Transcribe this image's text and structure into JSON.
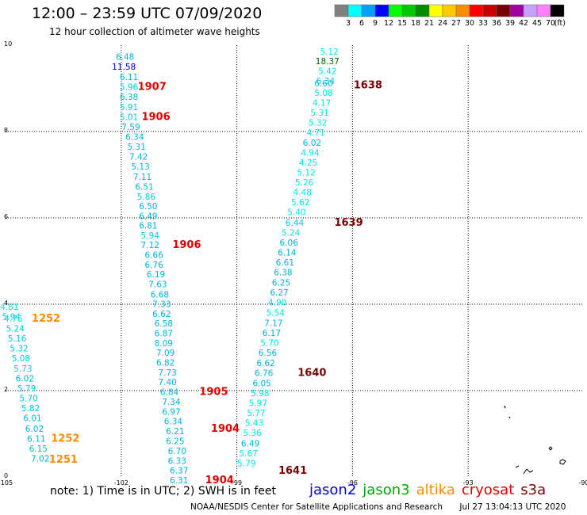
{
  "header": {
    "title": "12:00 – 23:59 UTC 07/09/2020",
    "subtitle": "12 hour collection of altimeter wave heights"
  },
  "colorbar": {
    "unit": "(ft)",
    "bins": [
      {
        "label": "3",
        "color": "#808080"
      },
      {
        "label": "6",
        "color": "#00ffff"
      },
      {
        "label": "9",
        "color": "#00a0ff"
      },
      {
        "label": "12",
        "color": "#0000ff"
      },
      {
        "label": "15",
        "color": "#00ff00"
      },
      {
        "label": "18",
        "color": "#00c800"
      },
      {
        "label": "21",
        "color": "#008c00"
      },
      {
        "label": "24",
        "color": "#ffff00"
      },
      {
        "label": "27",
        "color": "#ffc800"
      },
      {
        "label": "30",
        "color": "#ff8c00"
      },
      {
        "label": "33",
        "color": "#ff0000"
      },
      {
        "label": "36",
        "color": "#c80000"
      },
      {
        "label": "39",
        "color": "#780000"
      },
      {
        "label": "42",
        "color": "#a000a0"
      },
      {
        "label": "45",
        "color": "#c8a0ff"
      },
      {
        "label": "70",
        "color": "#ff80ff"
      },
      {
        "label": "",
        "color": "#000000"
      }
    ]
  },
  "axes": {
    "x_ticks": [
      {
        "value": -105,
        "label": "-105"
      },
      {
        "value": -102,
        "label": "-102"
      },
      {
        "value": -99,
        "label": "-99"
      },
      {
        "value": -96,
        "label": "-96"
      },
      {
        "value": -93,
        "label": "-93"
      },
      {
        "value": -90,
        "label": "-90"
      }
    ],
    "y_ticks": [
      {
        "value": 0,
        "label": "0"
      },
      {
        "value": 2,
        "label": "2"
      },
      {
        "value": 4,
        "label": "4"
      },
      {
        "value": 6,
        "label": "6"
      },
      {
        "value": 8,
        "label": "8"
      },
      {
        "value": 10,
        "label": "10"
      }
    ],
    "xlim": [
      -105,
      -90
    ],
    "ylim": [
      0,
      10
    ]
  },
  "chart_data": {
    "type": "scatter",
    "xlim": [
      -105,
      -90
    ],
    "ylim": [
      0,
      10
    ],
    "grid": true,
    "observations": [
      {
        "lon": -101.9,
        "lat": 9.66,
        "value": "6.48",
        "color": "#00b4dc"
      },
      {
        "lon": -101.93,
        "lat": 9.43,
        "value": "11.58",
        "color": "#0000c8"
      },
      {
        "lon": -101.8,
        "lat": 9.19,
        "value": "6.11",
        "color": "#00b4dc"
      },
      {
        "lon": -101.8,
        "lat": 8.96,
        "value": "5.96",
        "color": "#00c8e6"
      },
      {
        "lon": -101.8,
        "lat": 8.73,
        "value": "6.38",
        "color": "#00b4dc"
      },
      {
        "lon": -101.8,
        "lat": 8.5,
        "value": "5.91",
        "color": "#00c8e6"
      },
      {
        "lon": -101.8,
        "lat": 8.27,
        "value": "5.01",
        "color": "#00c8e6"
      },
      {
        "lon": -101.75,
        "lat": 8.04,
        "value": "7.59",
        "color": "#00b4dc"
      },
      {
        "lon": -101.65,
        "lat": 7.81,
        "value": "6.34",
        "color": "#00b4dc"
      },
      {
        "lon": -101.6,
        "lat": 7.58,
        "value": "5.31",
        "color": "#00b4dc"
      },
      {
        "lon": -101.55,
        "lat": 7.35,
        "value": "7.42",
        "color": "#00b4dc"
      },
      {
        "lon": -101.5,
        "lat": 7.12,
        "value": "5.13",
        "color": "#00b4dc"
      },
      {
        "lon": -101.45,
        "lat": 6.88,
        "value": "7.11",
        "color": "#00b4dc"
      },
      {
        "lon": -101.4,
        "lat": 6.65,
        "value": "6.51",
        "color": "#00b4dc"
      },
      {
        "lon": -101.35,
        "lat": 6.42,
        "value": "5.86",
        "color": "#00c8e6"
      },
      {
        "lon": -101.3,
        "lat": 6.2,
        "value": "6.50",
        "color": "#00b4dc"
      },
      {
        "lon": -101.3,
        "lat": 5.97,
        "value": "6.49",
        "color": "#00b4dc"
      },
      {
        "lon": -101.3,
        "lat": 5.75,
        "value": "6.81",
        "color": "#00b4dc"
      },
      {
        "lon": -101.25,
        "lat": 5.52,
        "value": "5.94",
        "color": "#00c8e6"
      },
      {
        "lon": -101.25,
        "lat": 5.3,
        "value": "7.12",
        "color": "#00b4dc"
      },
      {
        "lon": -101.15,
        "lat": 5.07,
        "value": "6.66",
        "color": "#00b4dc"
      },
      {
        "lon": -101.15,
        "lat": 4.84,
        "value": "6.76",
        "color": "#00b4dc"
      },
      {
        "lon": -101.1,
        "lat": 4.62,
        "value": "6.19",
        "color": "#00b4dc"
      },
      {
        "lon": -101.05,
        "lat": 4.39,
        "value": "7.63",
        "color": "#00b4dc"
      },
      {
        "lon": -101.0,
        "lat": 4.16,
        "value": "6.68",
        "color": "#00b4dc"
      },
      {
        "lon": -100.95,
        "lat": 3.94,
        "value": "7.33",
        "color": "#00b4dc"
      },
      {
        "lon": -100.95,
        "lat": 3.71,
        "value": "6.62",
        "color": "#00b4dc"
      },
      {
        "lon": -100.9,
        "lat": 3.49,
        "value": "6.58",
        "color": "#00b4dc"
      },
      {
        "lon": -100.9,
        "lat": 3.26,
        "value": "6.87",
        "color": "#00b4dc"
      },
      {
        "lon": -100.9,
        "lat": 3.03,
        "value": "8.09",
        "color": "#00b4dc"
      },
      {
        "lon": -100.85,
        "lat": 2.81,
        "value": "7.09",
        "color": "#00b4dc"
      },
      {
        "lon": -100.85,
        "lat": 2.58,
        "value": "6.82",
        "color": "#00b4dc"
      },
      {
        "lon": -100.8,
        "lat": 2.35,
        "value": "7.73",
        "color": "#00b4dc"
      },
      {
        "lon": -100.8,
        "lat": 2.13,
        "value": "7.40",
        "color": "#00b4dc"
      },
      {
        "lon": -100.75,
        "lat": 1.9,
        "value": "6.84",
        "color": "#00b4dc"
      },
      {
        "lon": -100.7,
        "lat": 1.67,
        "value": "7.34",
        "color": "#00b4dc"
      },
      {
        "lon": -100.7,
        "lat": 1.44,
        "value": "6.97",
        "color": "#00b4dc"
      },
      {
        "lon": -100.65,
        "lat": 1.22,
        "value": "6.34",
        "color": "#00b4dc"
      },
      {
        "lon": -100.6,
        "lat": 0.99,
        "value": "6.21",
        "color": "#00b4dc"
      },
      {
        "lon": -100.6,
        "lat": 0.76,
        "value": "6.25",
        "color": "#00b4dc"
      },
      {
        "lon": -100.55,
        "lat": 0.53,
        "value": "6.70",
        "color": "#00b4dc"
      },
      {
        "lon": -100.55,
        "lat": 0.3,
        "value": "6.33",
        "color": "#00b4dc"
      },
      {
        "lon": -100.5,
        "lat": 0.08,
        "value": "6.37",
        "color": "#00b4dc"
      },
      {
        "lon": -100.5,
        "lat": -0.15,
        "value": "6.31",
        "color": "#00b4dc"
      },
      {
        "lon": -96.6,
        "lat": 9.78,
        "value": "5.12",
        "color": "#00e6e6"
      },
      {
        "lon": -96.65,
        "lat": 9.56,
        "value": "18.37",
        "color": "#006400"
      },
      {
        "lon": -96.65,
        "lat": 9.33,
        "value": "5.42",
        "color": "#00e6e6"
      },
      {
        "lon": -96.7,
        "lat": 9.1,
        "value": "6.34",
        "color": "#00c8e6"
      },
      {
        "lon": -96.75,
        "lat": 9.05,
        "value": "6.60",
        "color": "#00c8e6"
      },
      {
        "lon": -96.75,
        "lat": 8.83,
        "value": "5.08",
        "color": "#00e6e6"
      },
      {
        "lon": -96.8,
        "lat": 8.6,
        "value": "4.17",
        "color": "#00e6e6"
      },
      {
        "lon": -96.85,
        "lat": 8.37,
        "value": "5.31",
        "color": "#00e6e6"
      },
      {
        "lon": -96.9,
        "lat": 8.14,
        "value": "5.32",
        "color": "#00e6e6"
      },
      {
        "lon": -96.95,
        "lat": 7.91,
        "value": "4.71",
        "color": "#00e6e6"
      },
      {
        "lon": -97.05,
        "lat": 7.67,
        "value": "6.02",
        "color": "#00b4dc"
      },
      {
        "lon": -97.1,
        "lat": 7.44,
        "value": "4.94",
        "color": "#00e6e6"
      },
      {
        "lon": -97.15,
        "lat": 7.21,
        "value": "4.25",
        "color": "#00e6e6"
      },
      {
        "lon": -97.2,
        "lat": 6.98,
        "value": "5.12",
        "color": "#00e6e6"
      },
      {
        "lon": -97.25,
        "lat": 6.75,
        "value": "5.26",
        "color": "#00e6e6"
      },
      {
        "lon": -97.3,
        "lat": 6.52,
        "value": "4.48",
        "color": "#00e6e6"
      },
      {
        "lon": -97.35,
        "lat": 6.29,
        "value": "5.62",
        "color": "#00e6e6"
      },
      {
        "lon": -97.45,
        "lat": 6.06,
        "value": "5.40",
        "color": "#00e6e6"
      },
      {
        "lon": -97.5,
        "lat": 5.82,
        "value": "6.44",
        "color": "#00c8e6"
      },
      {
        "lon": -97.6,
        "lat": 5.59,
        "value": "5.24",
        "color": "#00e6e6"
      },
      {
        "lon": -97.65,
        "lat": 5.36,
        "value": "6.06",
        "color": "#00b4dc"
      },
      {
        "lon": -97.7,
        "lat": 5.13,
        "value": "6.14",
        "color": "#00b4dc"
      },
      {
        "lon": -97.75,
        "lat": 4.9,
        "value": "6.61",
        "color": "#00b4dc"
      },
      {
        "lon": -97.8,
        "lat": 4.67,
        "value": "6.38",
        "color": "#00b4dc"
      },
      {
        "lon": -97.85,
        "lat": 4.43,
        "value": "6.25",
        "color": "#00b4dc"
      },
      {
        "lon": -97.9,
        "lat": 4.2,
        "value": "6.27",
        "color": "#00b4dc"
      },
      {
        "lon": -97.95,
        "lat": 3.97,
        "value": "4.90",
        "color": "#00e6e6"
      },
      {
        "lon": -98.0,
        "lat": 3.73,
        "value": "5.54",
        "color": "#00e6e6"
      },
      {
        "lon": -98.05,
        "lat": 3.5,
        "value": "7.17",
        "color": "#00b4dc"
      },
      {
        "lon": -98.1,
        "lat": 3.27,
        "value": "6.17",
        "color": "#00b4dc"
      },
      {
        "lon": -98.15,
        "lat": 3.04,
        "value": "5.70",
        "color": "#00e6e6"
      },
      {
        "lon": -98.2,
        "lat": 2.81,
        "value": "6.56",
        "color": "#00b4dc"
      },
      {
        "lon": -98.25,
        "lat": 2.57,
        "value": "6.62",
        "color": "#00b4dc"
      },
      {
        "lon": -98.3,
        "lat": 2.34,
        "value": "6.76",
        "color": "#00b4dc"
      },
      {
        "lon": -98.35,
        "lat": 2.1,
        "value": "6.05",
        "color": "#00b4dc"
      },
      {
        "lon": -98.4,
        "lat": 1.87,
        "value": "5.98",
        "color": "#00e6e6"
      },
      {
        "lon": -98.45,
        "lat": 1.64,
        "value": "5.97",
        "color": "#00e6e6"
      },
      {
        "lon": -98.5,
        "lat": 1.41,
        "value": "5.77",
        "color": "#00e6e6"
      },
      {
        "lon": -98.55,
        "lat": 1.18,
        "value": "5.43",
        "color": "#00e6e6"
      },
      {
        "lon": -98.6,
        "lat": 0.95,
        "value": "5.36",
        "color": "#00e6e6"
      },
      {
        "lon": -98.65,
        "lat": 0.71,
        "value": "6.49",
        "color": "#00b4dc"
      },
      {
        "lon": -98.7,
        "lat": 0.48,
        "value": "5.67",
        "color": "#00e6e6"
      },
      {
        "lon": -98.75,
        "lat": 0.25,
        "value": "5.79",
        "color": "#00e6e6"
      },
      {
        "lon": -104.9,
        "lat": 3.87,
        "value": "4.81",
        "color": "#00e6e6"
      },
      {
        "lon": -104.85,
        "lat": 3.64,
        "value": "5.94",
        "color": "#00c8e6"
      },
      {
        "lon": -104.8,
        "lat": 3.6,
        "value": "4.76",
        "color": "#00e6e6"
      },
      {
        "lon": -104.75,
        "lat": 3.37,
        "value": "5.24",
        "color": "#00c8e6"
      },
      {
        "lon": -104.7,
        "lat": 3.14,
        "value": "5.16",
        "color": "#00c8e6"
      },
      {
        "lon": -104.65,
        "lat": 2.91,
        "value": "5.32",
        "color": "#00c8e6"
      },
      {
        "lon": -104.6,
        "lat": 2.68,
        "value": "5.08",
        "color": "#00c8e6"
      },
      {
        "lon": -104.55,
        "lat": 2.44,
        "value": "5.73",
        "color": "#00c8e6"
      },
      {
        "lon": -104.5,
        "lat": 2.21,
        "value": "6.02",
        "color": "#00b4dc"
      },
      {
        "lon": -104.45,
        "lat": 1.98,
        "value": "5.79",
        "color": "#00c8e6"
      },
      {
        "lon": -104.4,
        "lat": 1.75,
        "value": "5.70",
        "color": "#00c8e6"
      },
      {
        "lon": -104.35,
        "lat": 1.52,
        "value": "5.82",
        "color": "#00c8e6"
      },
      {
        "lon": -104.3,
        "lat": 1.29,
        "value": "6.01",
        "color": "#00b4dc"
      },
      {
        "lon": -104.25,
        "lat": 1.05,
        "value": "6.02",
        "color": "#00b4dc"
      },
      {
        "lon": -104.2,
        "lat": 0.82,
        "value": "6.11",
        "color": "#00b4dc"
      },
      {
        "lon": -104.15,
        "lat": 0.59,
        "value": "6.15",
        "color": "#00b4dc"
      },
      {
        "lon": -104.1,
        "lat": 0.36,
        "value": "7.02",
        "color": "#00b4dc"
      }
    ],
    "pass_times": [
      {
        "lon": -101.2,
        "lat": 8.96,
        "label": "1907",
        "color": "#dd0000"
      },
      {
        "lon": -101.1,
        "lat": 8.27,
        "label": "1906",
        "color": "#dd0000"
      },
      {
        "lon": -100.3,
        "lat": 5.3,
        "label": "1906",
        "color": "#dd0000"
      },
      {
        "lon": -99.6,
        "lat": 1.9,
        "label": "1905",
        "color": "#dd0000"
      },
      {
        "lon": -99.3,
        "lat": 1.05,
        "label": "1904",
        "color": "#dd0000"
      },
      {
        "lon": -99.45,
        "lat": -0.15,
        "label": "1904",
        "color": "#dd0000"
      },
      {
        "lon": -95.6,
        "lat": 9.0,
        "label": "1638",
        "color": "#780000"
      },
      {
        "lon": -96.1,
        "lat": 5.82,
        "label": "1639",
        "color": "#780000"
      },
      {
        "lon": -97.05,
        "lat": 2.34,
        "label": "1640",
        "color": "#780000"
      },
      {
        "lon": -97.55,
        "lat": 0.07,
        "label": "1641",
        "color": "#780000"
      },
      {
        "lon": -103.95,
        "lat": 3.6,
        "label": "1252",
        "color": "#ff8c00"
      },
      {
        "lon": -103.45,
        "lat": 0.82,
        "label": "1252",
        "color": "#ff8c00"
      },
      {
        "lon": -103.5,
        "lat": 0.33,
        "label": "1251",
        "color": "#ff8c00"
      }
    ]
  },
  "note": "note: 1) Time is in UTC; 2) SWH is in feet",
  "legend": [
    {
      "label": "jason2",
      "color": "#0000dd"
    },
    {
      "label": "jason3",
      "color": "#00aa00"
    },
    {
      "label": "altika",
      "color": "#ff8c00"
    },
    {
      "label": "cryosat",
      "color": "#dd0000"
    },
    {
      "label": "s3a",
      "color": "#780000"
    }
  ],
  "footer": {
    "credit": "NOAA/NESDIS Center for Satellite Applications and Research",
    "timestamp": "Jul 27 13:04:13 UTC 2020"
  }
}
